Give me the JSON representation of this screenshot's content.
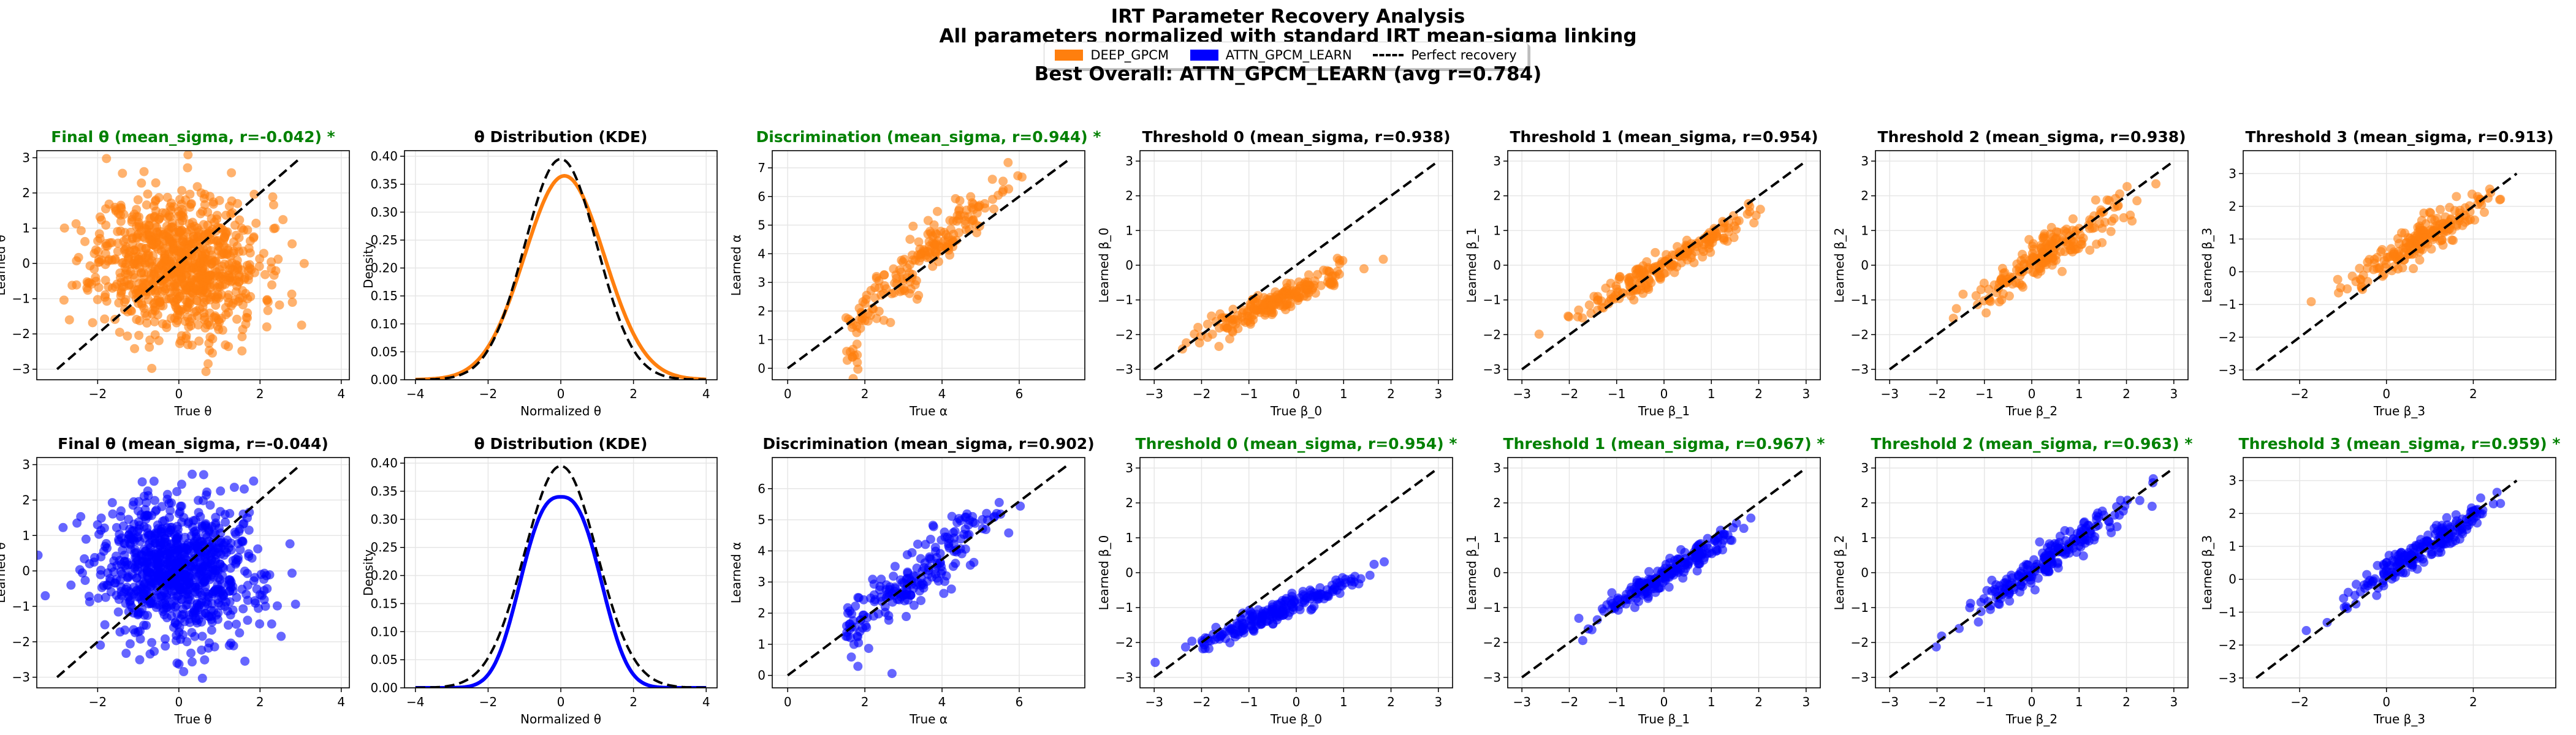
{
  "suptitle": {
    "line1": "IRT Parameter Recovery Analysis",
    "line2": "All parameters normalized with standard IRT mean-sigma linking",
    "best": "Best Overall: ATTN_GPCM_LEARN (avg r=0.784)"
  },
  "legend": {
    "items": [
      "DEEP_GPCM",
      "ATTN_GPCM_LEARN",
      "Perfect recovery"
    ],
    "colors": [
      "#ff7f0e",
      "#0000ff",
      "#000000"
    ]
  },
  "colors": {
    "best_title": "#008000",
    "normal_title": "#000000"
  },
  "chart_data": [
    {
      "type": "scatter",
      "model": "DEEP_GPCM",
      "title": "Final θ (mean_sigma, r=-0.042) *",
      "best": true,
      "xlabel": "True θ",
      "ylabel": "Learned θ",
      "xlim": [
        -3.5,
        4.2
      ],
      "ylim": [
        -3.3,
        3.2
      ],
      "xticks": [
        -2,
        0,
        2,
        4
      ],
      "yticks": [
        -3,
        -2,
        -1,
        0,
        1,
        2,
        3
      ],
      "r": -0.042,
      "n": 900,
      "seed": 11,
      "mx": 0,
      "sx": 1,
      "my": 0,
      "sy": 1,
      "reference": [
        [
          -3,
          -3
        ],
        [
          3,
          3
        ]
      ]
    },
    {
      "type": "line",
      "model": "DEEP_GPCM",
      "title": "θ Distribution (KDE)",
      "best": false,
      "xlabel": "Normalized θ",
      "ylabel": "Density",
      "xlim": [
        -4.3,
        4.3
      ],
      "ylim": [
        0,
        0.41
      ],
      "xticks": [
        -4,
        -2,
        0,
        2,
        4
      ],
      "yticks": [
        0,
        0.05,
        0.1,
        0.15,
        0.2,
        0.25,
        0.3,
        0.35,
        0.4
      ],
      "yticklabels": [
        "0.00",
        "0.05",
        "0.10",
        "0.15",
        "0.20",
        "0.25",
        "0.30",
        "0.35",
        "0.40"
      ],
      "kde": {
        "mu": 0.1,
        "sd": 1.1,
        "peak": 0.365
      },
      "reference_kde": {
        "mu": 0,
        "sd": 1,
        "peak": 0.395
      }
    },
    {
      "type": "scatter",
      "model": "DEEP_GPCM",
      "title": "Discrimination (mean_sigma, r=0.944) *",
      "best": true,
      "xlabel": "True α",
      "ylabel": "Learned α",
      "xlim": [
        -0.4,
        7.7
      ],
      "ylim": [
        -0.4,
        7.6
      ],
      "xticks": [
        0,
        2,
        4,
        6
      ],
      "yticks": [
        0,
        1,
        2,
        3,
        4,
        5,
        6,
        7
      ],
      "r": 0.944,
      "n": 200,
      "seed": 23,
      "mx": 3.3,
      "sx": 1.1,
      "my": 3.6,
      "sy": 1.4,
      "xmin": 1.5,
      "reference": [
        [
          0,
          0
        ],
        [
          7.3,
          7.3
        ]
      ]
    },
    {
      "type": "scatter",
      "model": "DEEP_GPCM",
      "title": "Threshold 0 (mean_sigma, r=0.938)",
      "best": false,
      "xlabel": "True β_0",
      "ylabel": "Learned β_0",
      "xlim": [
        -3.3,
        3.3
      ],
      "ylim": [
        -3.3,
        3.3
      ],
      "xticks": [
        -3,
        -2,
        -1,
        0,
        1,
        2,
        3
      ],
      "yticks": [
        -3,
        -2,
        -1,
        0,
        1,
        2,
        3
      ],
      "r": 0.938,
      "n": 200,
      "seed": 31,
      "mx": -0.5,
      "sx": 0.85,
      "my": -1.1,
      "sy": 0.55,
      "reference": [
        [
          -3,
          -3
        ],
        [
          3,
          3
        ]
      ]
    },
    {
      "type": "scatter",
      "model": "DEEP_GPCM",
      "title": "Threshold 1 (mean_sigma, r=0.954)",
      "best": false,
      "xlabel": "True β_1",
      "ylabel": "Learned β_1",
      "xlim": [
        -3.3,
        3.3
      ],
      "ylim": [
        -3.3,
        3.3
      ],
      "xticks": [
        -3,
        -2,
        -1,
        0,
        1,
        2,
        3
      ],
      "yticks": [
        -3,
        -2,
        -1,
        0,
        1,
        2,
        3
      ],
      "r": 0.954,
      "n": 200,
      "seed": 37,
      "mx": 0,
      "sx": 0.85,
      "my": 0,
      "sy": 0.7,
      "reference": [
        [
          -3,
          -3
        ],
        [
          3,
          3
        ]
      ]
    },
    {
      "type": "scatter",
      "model": "DEEP_GPCM",
      "title": "Threshold 2 (mean_sigma, r=0.938)",
      "best": false,
      "xlabel": "True β_2",
      "ylabel": "Learned β_2",
      "xlim": [
        -3.3,
        3.3
      ],
      "ylim": [
        -3.3,
        3.3
      ],
      "xticks": [
        -3,
        -2,
        -1,
        0,
        1,
        2,
        3
      ],
      "yticks": [
        -3,
        -2,
        -1,
        0,
        1,
        2,
        3
      ],
      "r": 0.938,
      "n": 200,
      "seed": 41,
      "mx": 0.4,
      "sx": 0.85,
      "my": 0.4,
      "sy": 0.8,
      "reference": [
        [
          -3,
          -3
        ],
        [
          3,
          3
        ]
      ]
    },
    {
      "type": "scatter",
      "model": "DEEP_GPCM",
      "title": "Threshold 3 (mean_sigma, r=0.913)",
      "best": false,
      "xlabel": "True β_3",
      "ylabel": "Learned β_3",
      "xlim": [
        -3.3,
        3.9
      ],
      "ylim": [
        -3.3,
        3.7
      ],
      "xticks": [
        -2,
        0,
        2
      ],
      "yticks": [
        -3,
        -2,
        -1,
        0,
        1,
        2,
        3
      ],
      "r": 0.913,
      "n": 200,
      "seed": 43,
      "mx": 0.8,
      "sx": 0.85,
      "my": 1.0,
      "sy": 0.7,
      "reference": [
        [
          -3,
          -3
        ],
        [
          3,
          3
        ]
      ]
    },
    {
      "type": "scatter",
      "model": "ATTN_GPCM_LEARN",
      "title": "Final θ (mean_sigma, r=-0.044)",
      "best": false,
      "xlabel": "True θ",
      "ylabel": "Learned θ",
      "xlim": [
        -3.5,
        4.2
      ],
      "ylim": [
        -3.3,
        3.2
      ],
      "xticks": [
        -2,
        0,
        2,
        4
      ],
      "yticks": [
        -3,
        -2,
        -1,
        0,
        1,
        2,
        3
      ],
      "r": -0.044,
      "n": 900,
      "seed": 53,
      "mx": 0,
      "sx": 1,
      "my": 0,
      "sy": 1,
      "reference": [
        [
          -3,
          -3
        ],
        [
          3,
          3
        ]
      ]
    },
    {
      "type": "line",
      "model": "ATTN_GPCM_LEARN",
      "title": "θ Distribution (KDE)",
      "best": false,
      "xlabel": "Normalized θ",
      "ylabel": "Density",
      "xlim": [
        -4.3,
        4.3
      ],
      "ylim": [
        0,
        0.41
      ],
      "xticks": [
        -4,
        -2,
        0,
        2,
        4
      ],
      "yticks": [
        0,
        0.05,
        0.1,
        0.15,
        0.2,
        0.25,
        0.3,
        0.35,
        0.4
      ],
      "yticklabels": [
        "0.00",
        "0.05",
        "0.10",
        "0.15",
        "0.20",
        "0.25",
        "0.30",
        "0.35",
        "0.40"
      ],
      "kde": {
        "mu": 0,
        "sd": 1.05,
        "peak": 0.34,
        "flat": true
      },
      "reference_kde": {
        "mu": 0,
        "sd": 1,
        "peak": 0.395
      }
    },
    {
      "type": "scatter",
      "model": "ATTN_GPCM_LEARN",
      "title": "Discrimination (mean_sigma, r=0.902)",
      "best": false,
      "xlabel": "True α",
      "ylabel": "Learned α",
      "xlim": [
        -0.4,
        7.7
      ],
      "ylim": [
        -0.4,
        7.0
      ],
      "xticks": [
        0,
        2,
        4,
        6
      ],
      "yticks": [
        0,
        1,
        2,
        3,
        4,
        5,
        6
      ],
      "r": 0.902,
      "n": 200,
      "seed": 61,
      "mx": 3.3,
      "sx": 1.1,
      "my": 3.2,
      "sy": 1.2,
      "xmin": 1.5,
      "reference": [
        [
          0,
          0
        ],
        [
          7.3,
          6.8
        ]
      ]
    },
    {
      "type": "scatter",
      "model": "ATTN_GPCM_LEARN",
      "title": "Threshold 0 (mean_sigma, r=0.954) *",
      "best": true,
      "xlabel": "True β_0",
      "ylabel": "Learned β_0",
      "xlim": [
        -3.3,
        3.3
      ],
      "ylim": [
        -3.3,
        3.3
      ],
      "xticks": [
        -3,
        -2,
        -1,
        0,
        1,
        2,
        3
      ],
      "yticks": [
        -3,
        -2,
        -1,
        0,
        1,
        2,
        3
      ],
      "r": 0.954,
      "n": 200,
      "seed": 67,
      "mx": -0.5,
      "sx": 0.85,
      "my": -1.2,
      "sy": 0.5,
      "reference": [
        [
          -3,
          -3
        ],
        [
          3,
          3
        ]
      ]
    },
    {
      "type": "scatter",
      "model": "ATTN_GPCM_LEARN",
      "title": "Threshold 1 (mean_sigma, r=0.967) *",
      "best": true,
      "xlabel": "True β_1",
      "ylabel": "Learned β_1",
      "xlim": [
        -3.3,
        3.3
      ],
      "ylim": [
        -3.3,
        3.3
      ],
      "xticks": [
        -3,
        -2,
        -1,
        0,
        1,
        2,
        3
      ],
      "yticks": [
        -3,
        -2,
        -1,
        0,
        1,
        2,
        3
      ],
      "r": 0.967,
      "n": 200,
      "seed": 71,
      "mx": 0.1,
      "sx": 0.85,
      "my": 0,
      "sy": 0.75,
      "reference": [
        [
          -3,
          -3
        ],
        [
          3,
          3
        ]
      ]
    },
    {
      "type": "scatter",
      "model": "ATTN_GPCM_LEARN",
      "title": "Threshold 2 (mean_sigma, r=0.963) *",
      "best": true,
      "xlabel": "True β_2",
      "ylabel": "Learned β_2",
      "xlim": [
        -3.3,
        3.3
      ],
      "ylim": [
        -3.3,
        3.3
      ],
      "xticks": [
        -3,
        -2,
        -1,
        0,
        1,
        2,
        3
      ],
      "yticks": [
        -3,
        -2,
        -1,
        0,
        1,
        2,
        3
      ],
      "r": 0.963,
      "n": 200,
      "seed": 73,
      "mx": 0.5,
      "sx": 0.85,
      "my": 0.5,
      "sy": 0.85,
      "reference": [
        [
          -3,
          -3
        ],
        [
          3,
          3
        ]
      ]
    },
    {
      "type": "scatter",
      "model": "ATTN_GPCM_LEARN",
      "title": "Threshold 3 (mean_sigma, r=0.959) *",
      "best": true,
      "xlabel": "True β_3",
      "ylabel": "Learned β_3",
      "xlim": [
        -3.3,
        3.9
      ],
      "ylim": [
        -3.3,
        3.7
      ],
      "xticks": [
        -2,
        0,
        2
      ],
      "yticks": [
        -3,
        -2,
        -1,
        0,
        1,
        2,
        3
      ],
      "r": 0.959,
      "n": 200,
      "seed": 79,
      "mx": 0.8,
      "sx": 0.85,
      "my": 0.9,
      "sy": 0.75,
      "reference": [
        [
          -3,
          -3
        ],
        [
          3,
          3
        ]
      ]
    }
  ]
}
